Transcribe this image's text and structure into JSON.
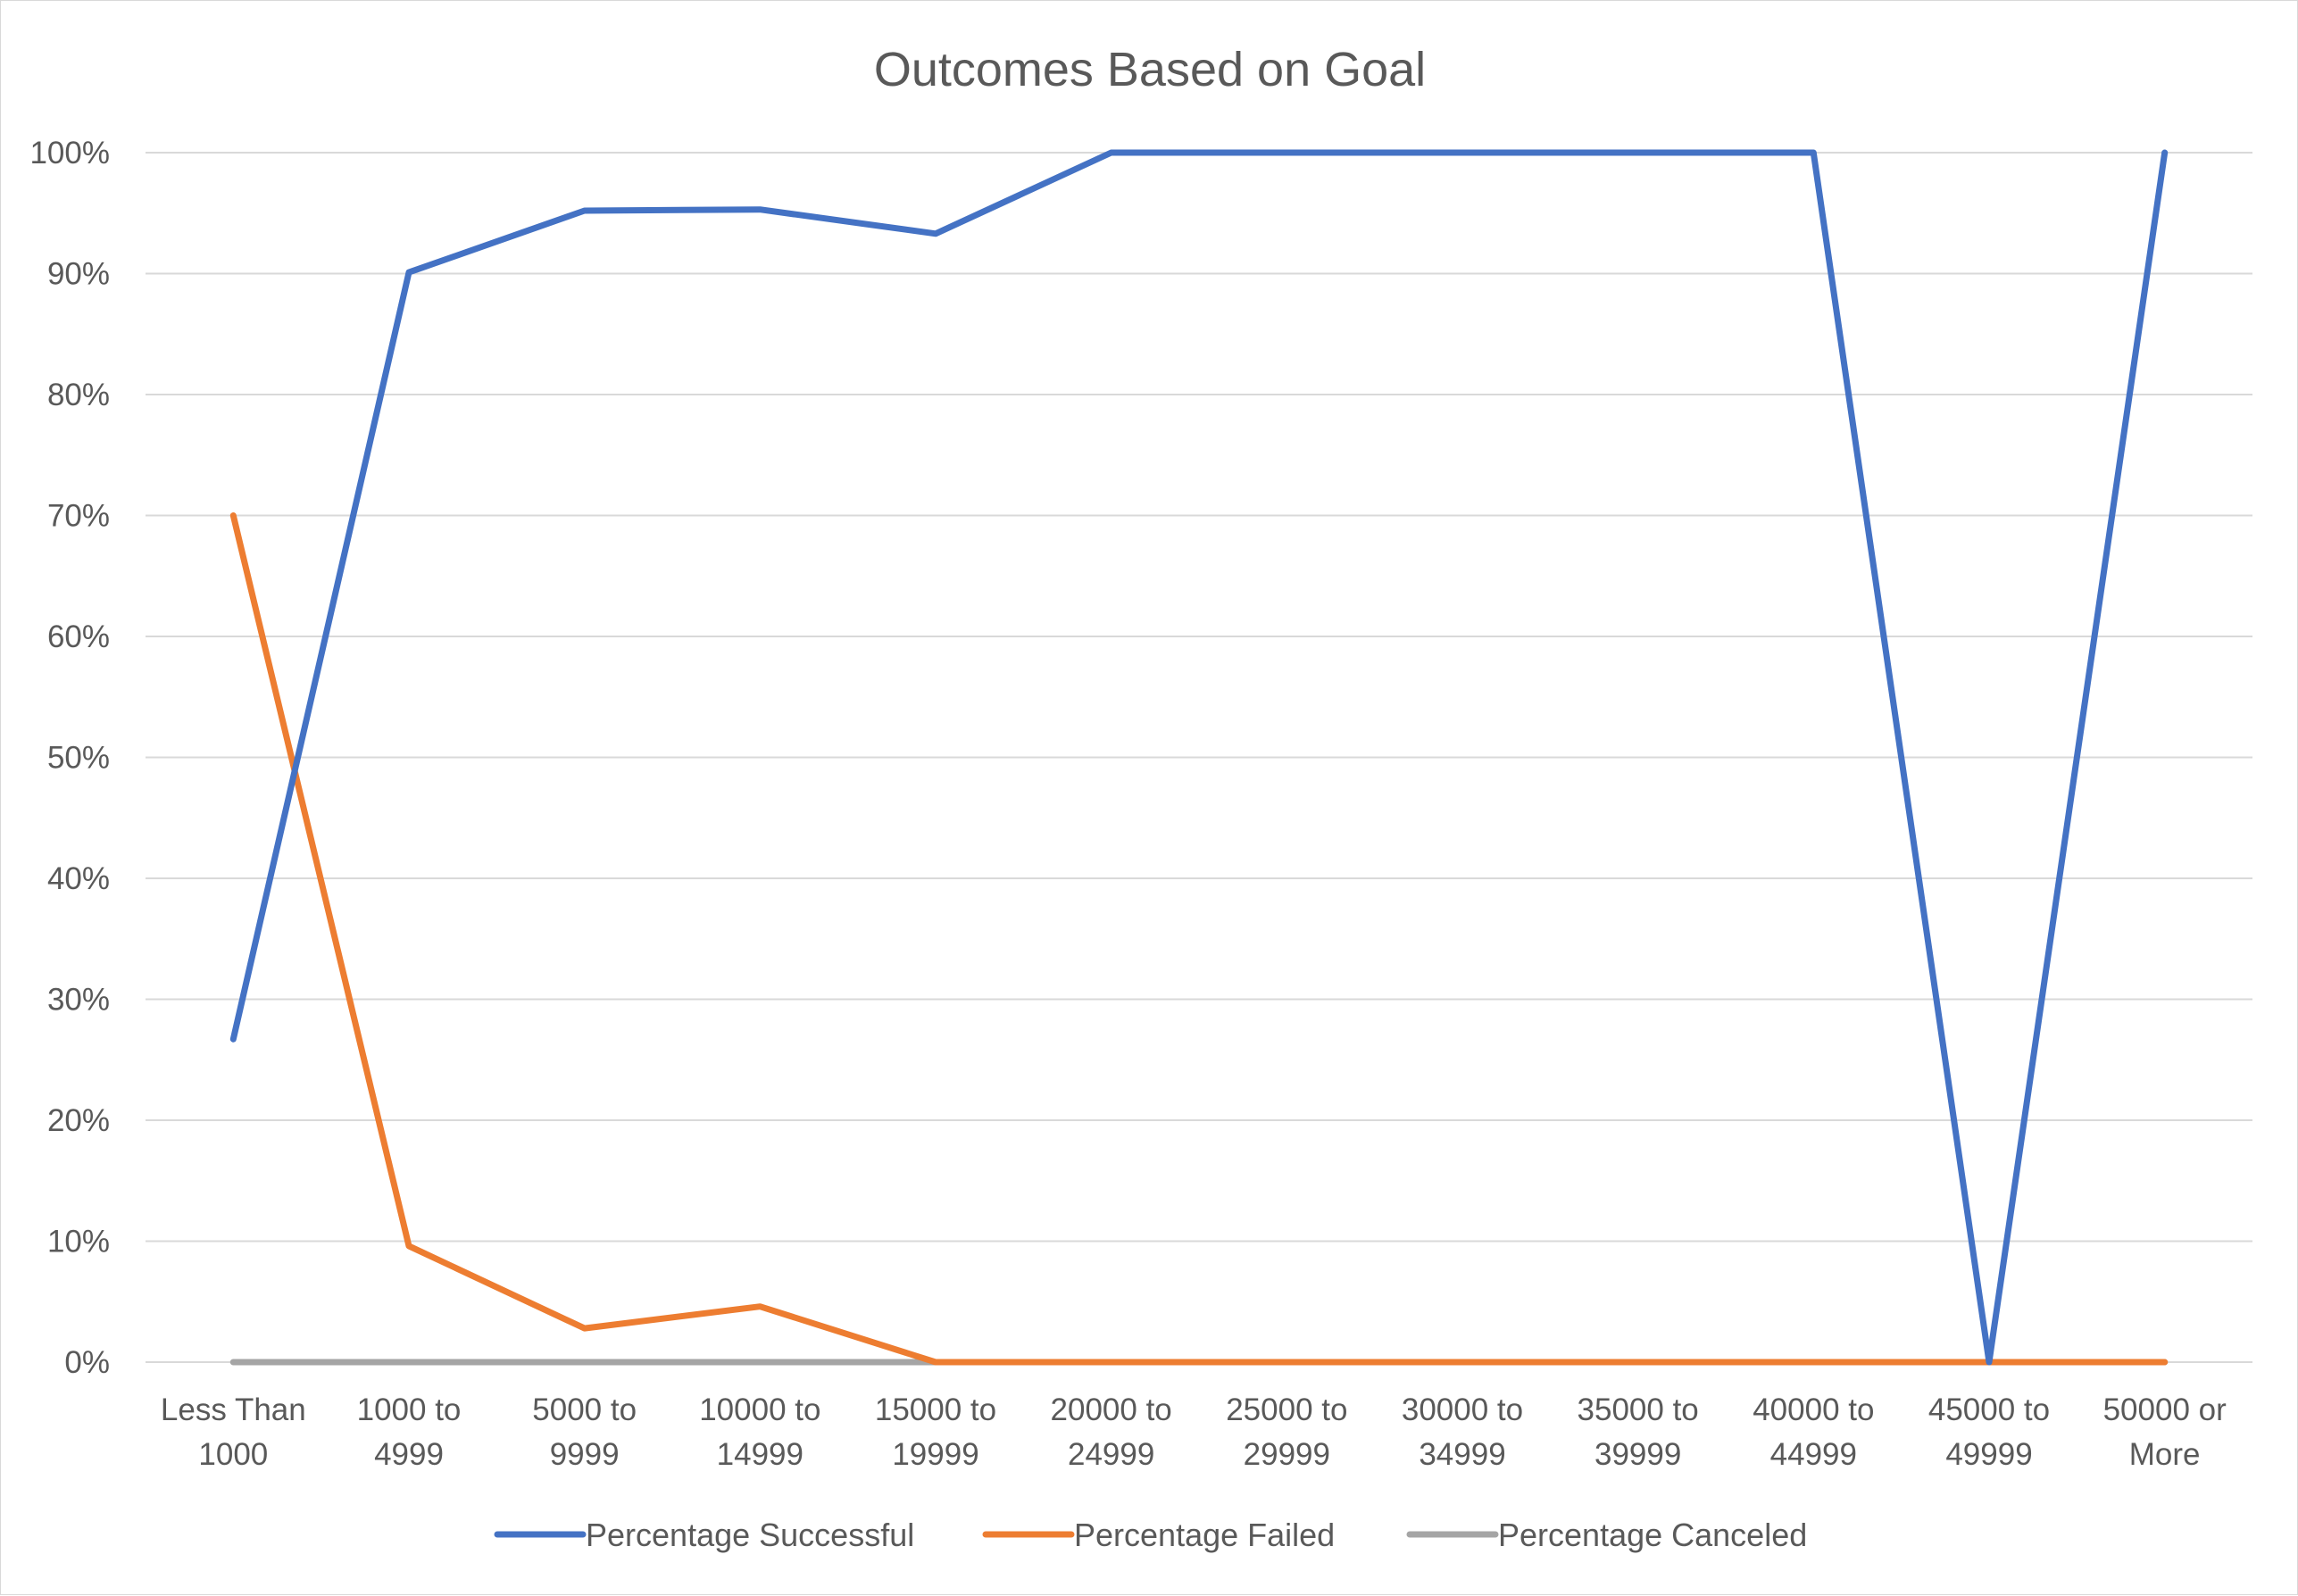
{
  "chart_data": {
    "type": "line",
    "title": "Outcomes Based on Goal",
    "xlabel": "",
    "ylabel": "",
    "categories": [
      [
        "Less Than",
        "1000"
      ],
      [
        "1000 to",
        "4999"
      ],
      [
        "5000 to",
        "9999"
      ],
      [
        "10000 to",
        "14999"
      ],
      [
        "15000 to",
        "19999"
      ],
      [
        "20000 to",
        "24999"
      ],
      [
        "25000 to",
        "29999"
      ],
      [
        "30000 to",
        "34999"
      ],
      [
        "35000 to",
        "39999"
      ],
      [
        "40000 to",
        "44999"
      ],
      [
        "45000 to",
        "49999"
      ],
      [
        "50000 or",
        "More"
      ]
    ],
    "ylim": [
      0,
      100
    ],
    "yticks": [
      0,
      10,
      20,
      30,
      40,
      50,
      60,
      70,
      80,
      90,
      100
    ],
    "ytick_labels": [
      "0%",
      "10%",
      "20%",
      "30%",
      "40%",
      "50%",
      "60%",
      "70%",
      "80%",
      "90%",
      "100%"
    ],
    "grid": "horizontal",
    "legend_position": "bottom",
    "series": [
      {
        "name": "Percentage Successful",
        "color": "#4472c4",
        "values": [
          26.7,
          90.1,
          95.2,
          95.3,
          93.3,
          100,
          100,
          100,
          100,
          100,
          0,
          100
        ]
      },
      {
        "name": "Percentage Failed",
        "color": "#ed7d31",
        "values": [
          70.0,
          9.6,
          2.8,
          4.6,
          0,
          0,
          0,
          0,
          0,
          0,
          0,
          0
        ]
      },
      {
        "name": "Percentage Canceled",
        "color": "#a5a5a5",
        "values": [
          0,
          0,
          0,
          0,
          0,
          0,
          0,
          0,
          0,
          0,
          0,
          0
        ]
      }
    ]
  }
}
